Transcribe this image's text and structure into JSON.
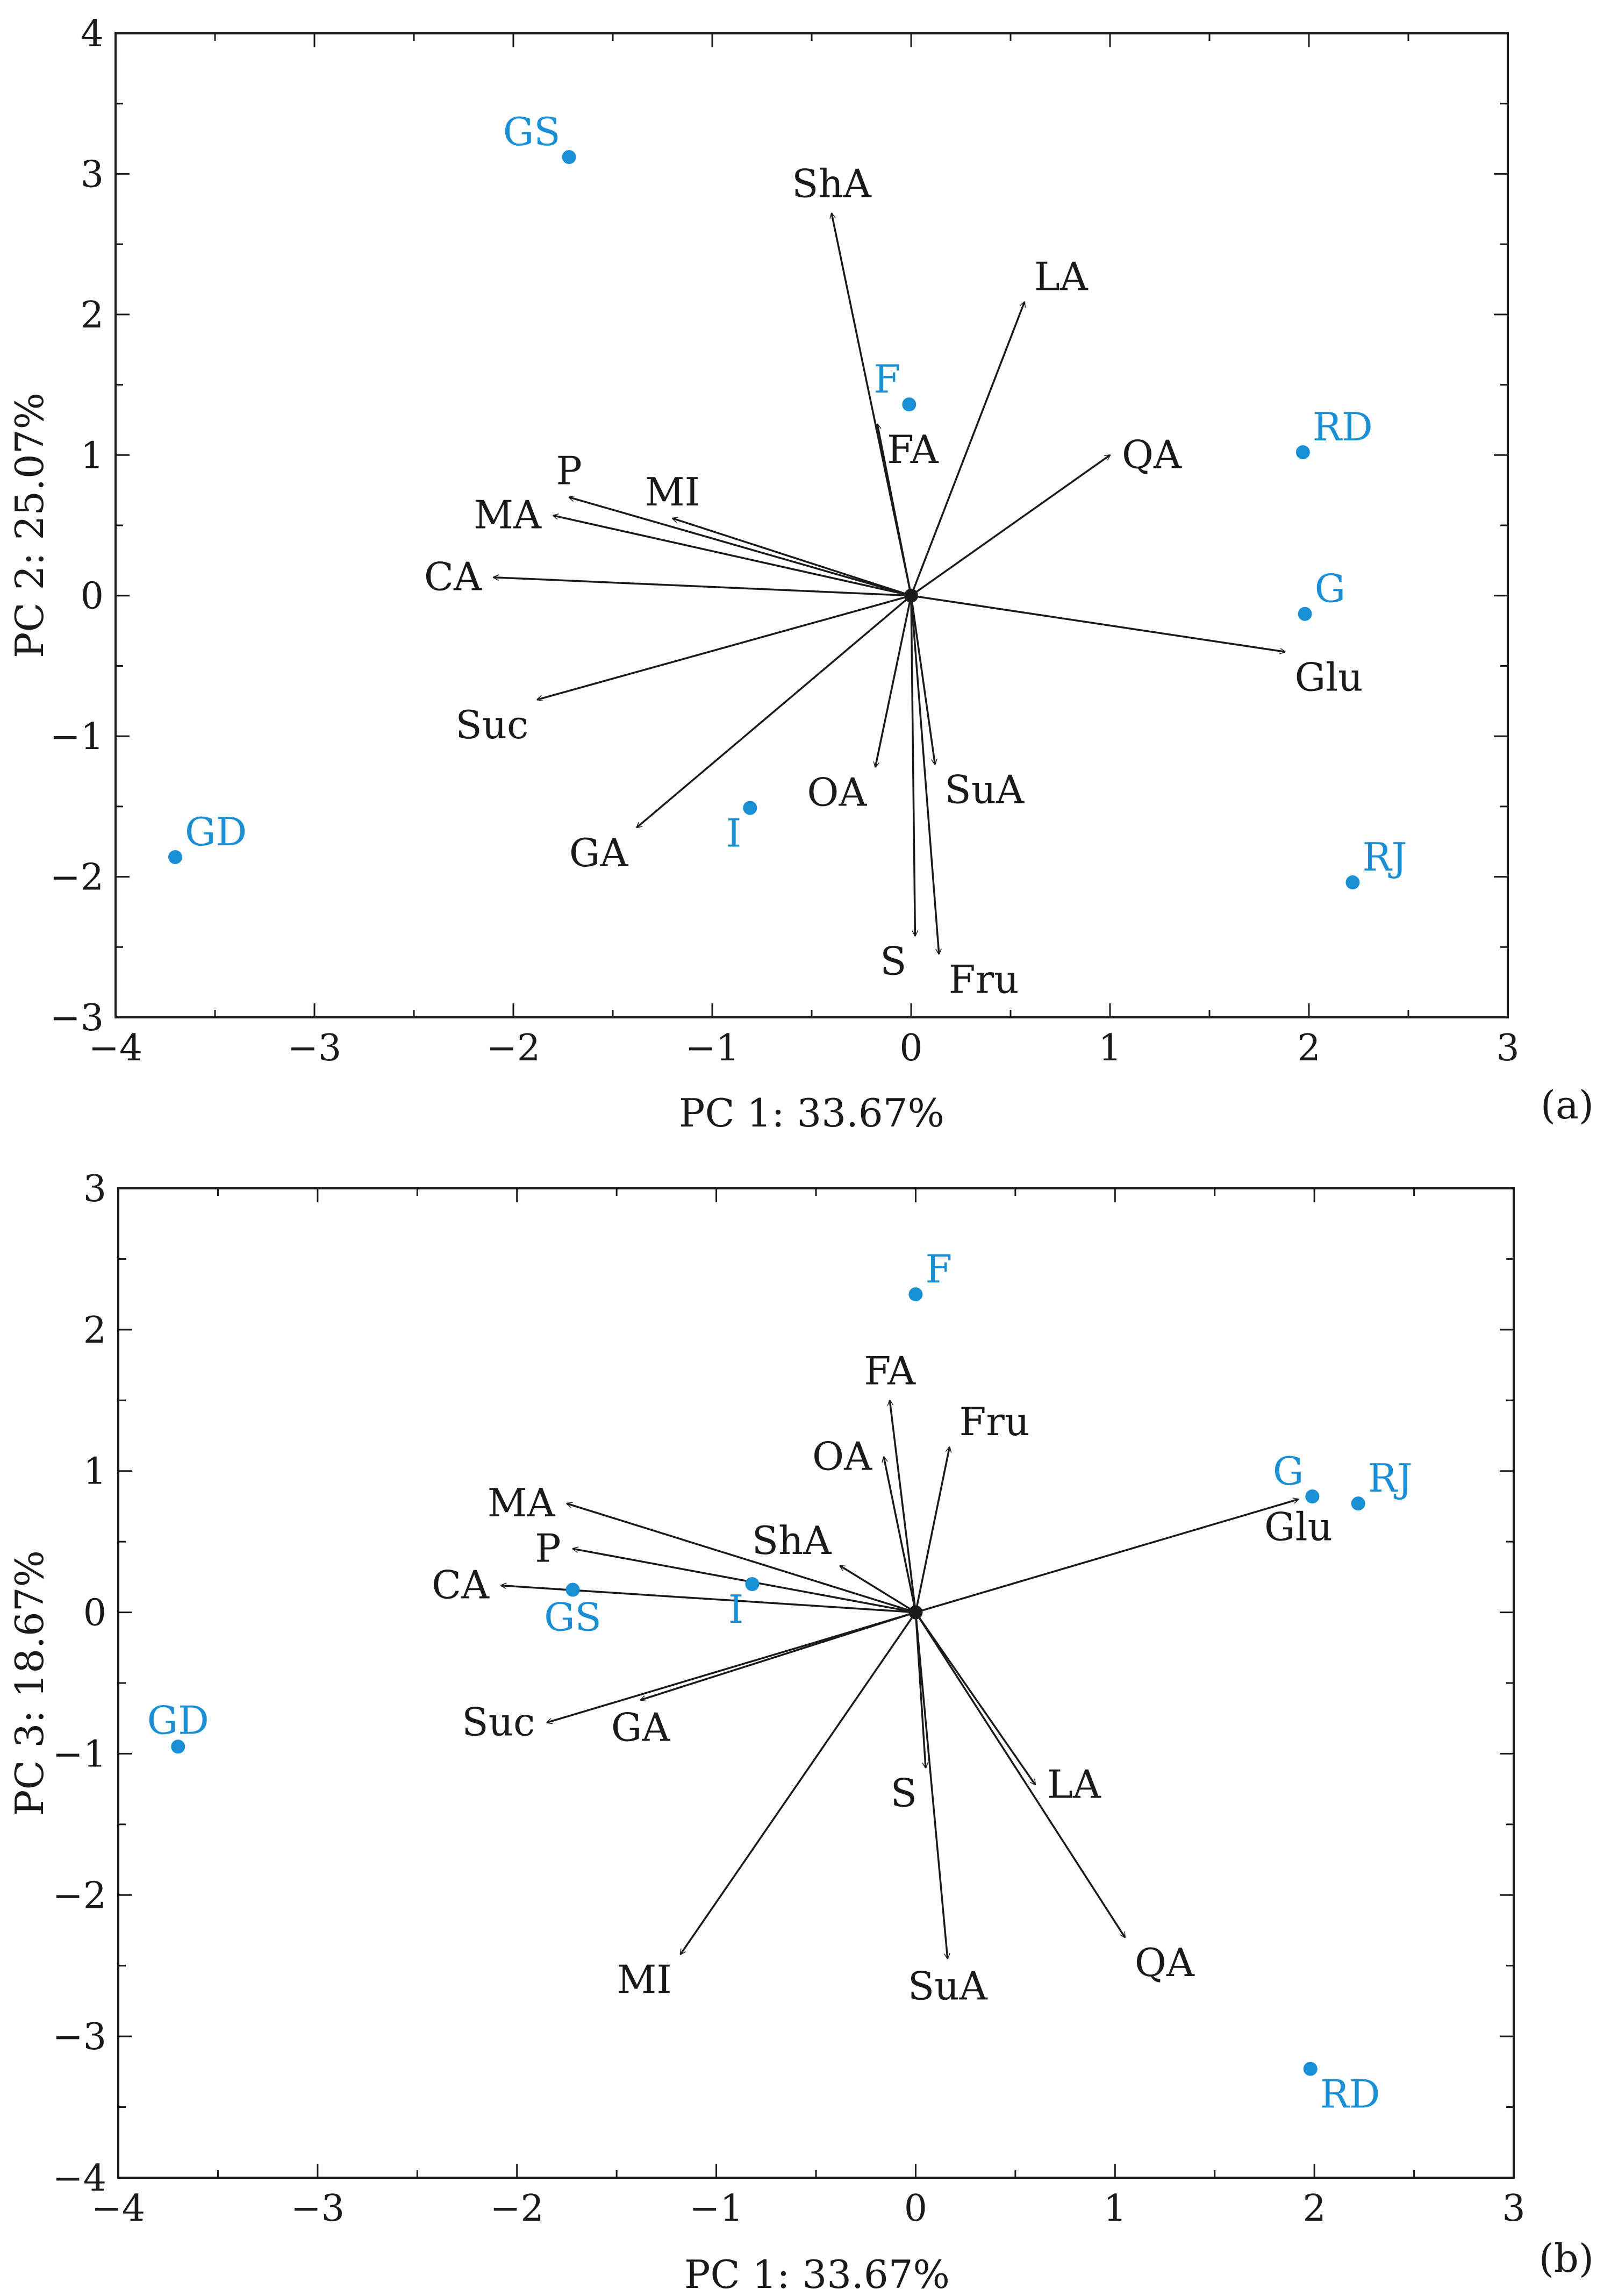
{
  "chart_data": [
    {
      "type": "scatter",
      "subtype": "biplot",
      "panel_label": "(a)",
      "xlabel": "PC 1: 33.67%",
      "ylabel": "PC 2: 25.07%",
      "xlim": [
        -4,
        3
      ],
      "ylim": [
        -3,
        4
      ],
      "xticks": [
        -4,
        -3,
        -2,
        -1,
        0,
        1,
        2,
        3
      ],
      "yticks": [
        -3,
        -2,
        -1,
        0,
        1,
        2,
        3,
        4
      ],
      "xtick_labels": [
        "−4",
        "−3",
        "−2",
        "−1",
        "0",
        "1",
        "2",
        "3"
      ],
      "ytick_labels": [
        "−3",
        "−2",
        "−1",
        "0",
        "1",
        "2",
        "3",
        "4"
      ],
      "grid": false,
      "point_color": "#1a8fd6",
      "vector_color": "#1a1a1a",
      "points": [
        {
          "label": "GS",
          "x": -1.72,
          "y": 3.12,
          "label_pos": "upper-left"
        },
        {
          "label": "F",
          "x": -0.01,
          "y": 1.36,
          "label_pos": "upper-left"
        },
        {
          "label": "RD",
          "x": 1.97,
          "y": 1.02,
          "label_pos": "upper-right"
        },
        {
          "label": "G",
          "x": 1.98,
          "y": -0.13,
          "label_pos": "upper-right"
        },
        {
          "label": "GD",
          "x": -3.7,
          "y": -1.86,
          "label_pos": "upper-right"
        },
        {
          "label": "I",
          "x": -0.81,
          "y": -1.51,
          "label_pos": "lower-left"
        },
        {
          "label": "RJ",
          "x": 2.22,
          "y": -2.04,
          "label_pos": "upper-right"
        }
      ],
      "vectors": [
        {
          "label": "ShA",
          "x": -0.4,
          "y": 2.72,
          "label_pos": "top"
        },
        {
          "label": "LA",
          "x": 0.57,
          "y": 2.09,
          "label_pos": "upper-right"
        },
        {
          "label": "FA",
          "x": -0.17,
          "y": 1.22,
          "label_pos": "lower-right"
        },
        {
          "label": "QA",
          "x": 1.0,
          "y": 1.0,
          "label_pos": "right"
        },
        {
          "label": "P",
          "x": -1.72,
          "y": 0.7,
          "label_pos": "upper"
        },
        {
          "label": "MA",
          "x": -1.8,
          "y": 0.57,
          "label_pos": "left"
        },
        {
          "label": "MI",
          "x": -1.2,
          "y": 0.55,
          "label_pos": "upper"
        },
        {
          "label": "CA",
          "x": -2.1,
          "y": 0.13,
          "label_pos": "left"
        },
        {
          "label": "Glu",
          "x": 1.88,
          "y": -0.4,
          "label_pos": "lower-right"
        },
        {
          "label": "Suc",
          "x": -1.88,
          "y": -0.74,
          "label_pos": "lower-left"
        },
        {
          "label": "OA",
          "x": -0.18,
          "y": -1.22,
          "label_pos": "lower-left"
        },
        {
          "label": "SuA",
          "x": 0.12,
          "y": -1.2,
          "label_pos": "lower-right"
        },
        {
          "label": "GA",
          "x": -1.38,
          "y": -1.65,
          "label_pos": "lower-left"
        },
        {
          "label": "S",
          "x": 0.02,
          "y": -2.42,
          "label_pos": "lower-left"
        },
        {
          "label": "Fru",
          "x": 0.14,
          "y": -2.55,
          "label_pos": "lower-right"
        }
      ]
    },
    {
      "type": "scatter",
      "subtype": "biplot",
      "panel_label": "(b)",
      "xlabel": "PC 1: 33.67%",
      "ylabel": "PC 3: 18.67%",
      "xlim": [
        -4,
        3
      ],
      "ylim": [
        -4,
        3
      ],
      "xticks": [
        -4,
        -3,
        -2,
        -1,
        0,
        1,
        2,
        3
      ],
      "yticks": [
        -4,
        -3,
        -2,
        -1,
        0,
        1,
        2,
        3
      ],
      "xtick_labels": [
        "−4",
        "−3",
        "−2",
        "−1",
        "0",
        "1",
        "2",
        "3"
      ],
      "ytick_labels": [
        "−4",
        "−3",
        "−2",
        "−1",
        "0",
        "1",
        "2",
        "3"
      ],
      "grid": false,
      "point_color": "#1a8fd6",
      "vector_color": "#1a1a1a",
      "points": [
        {
          "label": "F",
          "x": 0.0,
          "y": 2.25,
          "label_pos": "upper-right"
        },
        {
          "label": "G",
          "x": 1.99,
          "y": 0.82,
          "label_pos": "upper-left"
        },
        {
          "label": "RJ",
          "x": 2.22,
          "y": 0.77,
          "label_pos": "upper-right"
        },
        {
          "label": "GS",
          "x": -1.72,
          "y": 0.16,
          "label_pos": "lower"
        },
        {
          "label": "I",
          "x": -0.82,
          "y": 0.2,
          "label_pos": "lower-left"
        },
        {
          "label": "GD",
          "x": -3.7,
          "y": -0.95,
          "label_pos": "upper"
        },
        {
          "label": "RD",
          "x": 1.98,
          "y": -3.23,
          "label_pos": "lower-right"
        }
      ],
      "vectors": [
        {
          "label": "FA",
          "x": -0.13,
          "y": 1.5,
          "label_pos": "top"
        },
        {
          "label": "OA",
          "x": -0.16,
          "y": 1.1,
          "label_pos": "left"
        },
        {
          "label": "Fru",
          "x": 0.17,
          "y": 1.17,
          "label_pos": "upper-right"
        },
        {
          "label": "MA",
          "x": -1.75,
          "y": 0.77,
          "label_pos": "left"
        },
        {
          "label": "Glu",
          "x": 1.92,
          "y": 0.8,
          "label_pos": "lower"
        },
        {
          "label": "P",
          "x": -1.72,
          "y": 0.45,
          "label_pos": "left"
        },
        {
          "label": "ShA",
          "x": -0.38,
          "y": 0.33,
          "label_pos": "upper-left"
        },
        {
          "label": "CA",
          "x": -2.08,
          "y": 0.19,
          "label_pos": "left"
        },
        {
          "label": "GA",
          "x": -1.38,
          "y": -0.62,
          "label_pos": "lower"
        },
        {
          "label": "Suc",
          "x": -1.85,
          "y": -0.78,
          "label_pos": "left"
        },
        {
          "label": "S",
          "x": 0.05,
          "y": -1.1,
          "label_pos": "lower-left"
        },
        {
          "label": "LA",
          "x": 0.6,
          "y": -1.22,
          "label_pos": "right"
        },
        {
          "label": "MI",
          "x": -1.18,
          "y": -2.42,
          "label_pos": "lower-left"
        },
        {
          "label": "SuA",
          "x": 0.16,
          "y": -2.45,
          "label_pos": "lower"
        },
        {
          "label": "QA",
          "x": 1.05,
          "y": -2.3,
          "label_pos": "lower-right"
        }
      ]
    }
  ]
}
